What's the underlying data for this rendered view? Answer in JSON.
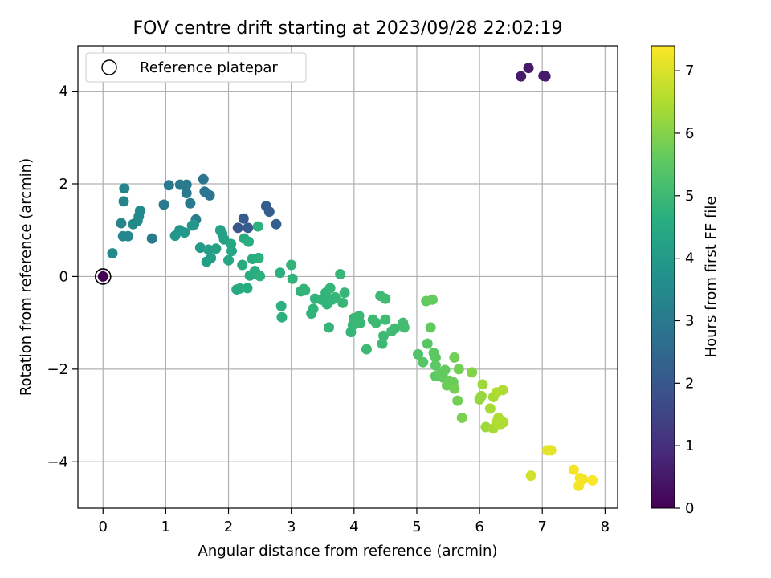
{
  "chart_data": {
    "type": "scatter",
    "title": "FOV centre drift starting at 2023/09/28 22:02:19",
    "xlabel": "Angular distance from reference (arcmin)",
    "ylabel": "Rotation from reference (arcmin)",
    "xlim": [
      -0.4,
      8.2
    ],
    "ylim": [
      -5.0,
      4.98
    ],
    "xticks": [
      0,
      1,
      2,
      3,
      4,
      5,
      6,
      7,
      8
    ],
    "yticks": [
      -4,
      -2,
      0,
      2,
      4
    ],
    "grid": true,
    "legend": {
      "position": "top-left",
      "entries": [
        "Reference platepar"
      ]
    },
    "reference_point": {
      "x": 0,
      "y": 0
    },
    "colorbar": {
      "label": "Hours from first FF file",
      "min": 0,
      "max": 7.4,
      "ticks": [
        0,
        1,
        2,
        3,
        4,
        5,
        6,
        7
      ],
      "colormap": "viridis"
    },
    "points": [
      {
        "x": 0.0,
        "y": 0.0,
        "c": 0.0
      },
      {
        "x": 6.66,
        "y": 4.32,
        "c": 0.5
      },
      {
        "x": 6.78,
        "y": 4.5,
        "c": 0.5
      },
      {
        "x": 7.02,
        "y": 4.33,
        "c": 0.55
      },
      {
        "x": 7.05,
        "y": 4.32,
        "c": 0.55
      },
      {
        "x": 2.15,
        "y": 1.05,
        "c": 2.0
      },
      {
        "x": 2.24,
        "y": 1.25,
        "c": 2.1
      },
      {
        "x": 2.31,
        "y": 1.05,
        "c": 2.1
      },
      {
        "x": 2.6,
        "y": 1.52,
        "c": 2.2
      },
      {
        "x": 2.65,
        "y": 1.4,
        "c": 2.2
      },
      {
        "x": 2.76,
        "y": 1.13,
        "c": 2.2
      },
      {
        "x": 0.97,
        "y": 1.55,
        "c": 3.0
      },
      {
        "x": 1.05,
        "y": 1.97,
        "c": 3.0
      },
      {
        "x": 1.23,
        "y": 1.98,
        "c": 3.0
      },
      {
        "x": 1.33,
        "y": 1.98,
        "c": 3.0
      },
      {
        "x": 1.33,
        "y": 1.8,
        "c": 3.0
      },
      {
        "x": 1.39,
        "y": 1.58,
        "c": 3.0
      },
      {
        "x": 1.48,
        "y": 1.23,
        "c": 3.05
      },
      {
        "x": 1.6,
        "y": 2.1,
        "c": 2.9
      },
      {
        "x": 1.62,
        "y": 1.83,
        "c": 2.9
      },
      {
        "x": 1.7,
        "y": 1.75,
        "c": 2.9
      },
      {
        "x": 0.78,
        "y": 0.82,
        "c": 3.1
      },
      {
        "x": 0.34,
        "y": 1.9,
        "c": 3.3
      },
      {
        "x": 0.33,
        "y": 1.62,
        "c": 3.3
      },
      {
        "x": 0.29,
        "y": 1.15,
        "c": 3.3
      },
      {
        "x": 0.32,
        "y": 0.87,
        "c": 3.4
      },
      {
        "x": 0.4,
        "y": 0.87,
        "c": 3.4
      },
      {
        "x": 0.15,
        "y": 0.5,
        "c": 3.5
      },
      {
        "x": 0.48,
        "y": 1.13,
        "c": 3.5
      },
      {
        "x": 0.55,
        "y": 1.2,
        "c": 3.5
      },
      {
        "x": 0.57,
        "y": 1.3,
        "c": 3.5
      },
      {
        "x": 0.59,
        "y": 1.42,
        "c": 3.5
      },
      {
        "x": 1.15,
        "y": 0.88,
        "c": 3.9
      },
      {
        "x": 1.22,
        "y": 1.0,
        "c": 3.9
      },
      {
        "x": 1.3,
        "y": 0.95,
        "c": 3.9
      },
      {
        "x": 1.42,
        "y": 1.1,
        "c": 3.9
      },
      {
        "x": 1.45,
        "y": 1.12,
        "c": 3.9
      },
      {
        "x": 1.55,
        "y": 0.62,
        "c": 4.0
      },
      {
        "x": 1.65,
        "y": 0.32,
        "c": 4.1
      },
      {
        "x": 1.68,
        "y": 0.58,
        "c": 4.1
      },
      {
        "x": 1.72,
        "y": 0.4,
        "c": 4.1
      },
      {
        "x": 1.8,
        "y": 0.6,
        "c": 4.2
      },
      {
        "x": 1.87,
        "y": 1.0,
        "c": 4.2
      },
      {
        "x": 1.9,
        "y": 0.92,
        "c": 4.2
      },
      {
        "x": 1.93,
        "y": 0.8,
        "c": 4.2
      },
      {
        "x": 2.0,
        "y": 0.35,
        "c": 4.4
      },
      {
        "x": 2.04,
        "y": 0.7,
        "c": 4.4
      },
      {
        "x": 2.05,
        "y": 0.55,
        "c": 4.4
      },
      {
        "x": 2.13,
        "y": -0.28,
        "c": 4.5
      },
      {
        "x": 2.18,
        "y": -0.26,
        "c": 4.5
      },
      {
        "x": 2.22,
        "y": 0.25,
        "c": 4.5
      },
      {
        "x": 2.25,
        "y": 0.82,
        "c": 4.5
      },
      {
        "x": 2.3,
        "y": -0.25,
        "c": 4.6
      },
      {
        "x": 2.32,
        "y": 0.75,
        "c": 4.6
      },
      {
        "x": 2.34,
        "y": 0.02,
        "c": 4.6
      },
      {
        "x": 2.38,
        "y": 0.38,
        "c": 4.6
      },
      {
        "x": 2.42,
        "y": 0.12,
        "c": 4.6
      },
      {
        "x": 2.45,
        "y": 0.05,
        "c": 4.6
      },
      {
        "x": 2.47,
        "y": 1.08,
        "c": 4.7
      },
      {
        "x": 2.48,
        "y": 0.4,
        "c": 4.7
      },
      {
        "x": 2.5,
        "y": 0.01,
        "c": 4.7
      },
      {
        "x": 2.82,
        "y": 0.08,
        "c": 4.7
      },
      {
        "x": 2.84,
        "y": -0.64,
        "c": 4.7
      },
      {
        "x": 2.85,
        "y": -0.88,
        "c": 4.7
      },
      {
        "x": 3.0,
        "y": 0.25,
        "c": 4.8
      },
      {
        "x": 3.02,
        "y": -0.05,
        "c": 4.8
      },
      {
        "x": 3.15,
        "y": -0.32,
        "c": 4.8
      },
      {
        "x": 3.2,
        "y": -0.27,
        "c": 4.8
      },
      {
        "x": 3.22,
        "y": -0.3,
        "c": 4.8
      },
      {
        "x": 3.32,
        "y": -0.8,
        "c": 4.8
      },
      {
        "x": 3.35,
        "y": -0.7,
        "c": 4.8
      },
      {
        "x": 3.38,
        "y": -0.48,
        "c": 4.8
      },
      {
        "x": 3.48,
        "y": -0.5,
        "c": 4.8
      },
      {
        "x": 3.52,
        "y": -0.48,
        "c": 4.8
      },
      {
        "x": 3.55,
        "y": -0.35,
        "c": 4.8
      },
      {
        "x": 3.57,
        "y": -0.6,
        "c": 4.8
      },
      {
        "x": 3.6,
        "y": -1.1,
        "c": 4.85
      },
      {
        "x": 3.62,
        "y": -0.25,
        "c": 4.85
      },
      {
        "x": 3.65,
        "y": -0.5,
        "c": 4.85
      },
      {
        "x": 3.7,
        "y": -0.45,
        "c": 4.85
      },
      {
        "x": 3.78,
        "y": 0.05,
        "c": 4.9
      },
      {
        "x": 3.82,
        "y": -0.57,
        "c": 4.9
      },
      {
        "x": 3.85,
        "y": -0.35,
        "c": 4.9
      },
      {
        "x": 3.95,
        "y": -1.2,
        "c": 4.9
      },
      {
        "x": 3.98,
        "y": -1.05,
        "c": 4.9
      },
      {
        "x": 4.0,
        "y": -0.9,
        "c": 4.9
      },
      {
        "x": 4.05,
        "y": -1.0,
        "c": 4.95
      },
      {
        "x": 4.08,
        "y": -0.85,
        "c": 4.95
      },
      {
        "x": 4.1,
        "y": -1.0,
        "c": 4.95
      },
      {
        "x": 4.2,
        "y": -1.57,
        "c": 5.0
      },
      {
        "x": 4.3,
        "y": -0.93,
        "c": 5.0
      },
      {
        "x": 4.35,
        "y": -1.0,
        "c": 5.0
      },
      {
        "x": 4.42,
        "y": -0.42,
        "c": 5.0
      },
      {
        "x": 4.45,
        "y": -1.45,
        "c": 5.0
      },
      {
        "x": 4.47,
        "y": -1.28,
        "c": 5.0
      },
      {
        "x": 4.5,
        "y": -0.93,
        "c": 5.05
      },
      {
        "x": 4.5,
        "y": -0.48,
        "c": 5.05
      },
      {
        "x": 4.6,
        "y": -1.18,
        "c": 5.05
      },
      {
        "x": 4.65,
        "y": -1.12,
        "c": 5.05
      },
      {
        "x": 4.78,
        "y": -1.0,
        "c": 5.1
      },
      {
        "x": 4.8,
        "y": -1.1,
        "c": 5.1
      },
      {
        "x": 5.02,
        "y": -1.68,
        "c": 5.3
      },
      {
        "x": 5.1,
        "y": -1.85,
        "c": 5.4
      },
      {
        "x": 5.15,
        "y": -0.53,
        "c": 5.6
      },
      {
        "x": 5.17,
        "y": -1.45,
        "c": 5.45
      },
      {
        "x": 5.22,
        "y": -1.1,
        "c": 5.6
      },
      {
        "x": 5.25,
        "y": -0.5,
        "c": 5.6
      },
      {
        "x": 5.27,
        "y": -1.65,
        "c": 5.5
      },
      {
        "x": 5.3,
        "y": -1.75,
        "c": 5.5
      },
      {
        "x": 5.3,
        "y": -1.92,
        "c": 5.5
      },
      {
        "x": 5.3,
        "y": -2.15,
        "c": 5.5
      },
      {
        "x": 5.38,
        "y": -2.1,
        "c": 5.6
      },
      {
        "x": 5.42,
        "y": -2.18,
        "c": 5.6
      },
      {
        "x": 5.45,
        "y": -2.02,
        "c": 5.6
      },
      {
        "x": 5.48,
        "y": -2.35,
        "c": 5.7
      },
      {
        "x": 5.52,
        "y": -2.25,
        "c": 5.7
      },
      {
        "x": 5.58,
        "y": -2.28,
        "c": 5.7
      },
      {
        "x": 5.6,
        "y": -1.75,
        "c": 5.8
      },
      {
        "x": 5.6,
        "y": -2.42,
        "c": 5.8
      },
      {
        "x": 5.65,
        "y": -2.68,
        "c": 5.8
      },
      {
        "x": 5.67,
        "y": -2.0,
        "c": 5.8
      },
      {
        "x": 5.72,
        "y": -3.05,
        "c": 5.9
      },
      {
        "x": 5.88,
        "y": -2.07,
        "c": 6.0
      },
      {
        "x": 6.0,
        "y": -2.65,
        "c": 6.2
      },
      {
        "x": 6.03,
        "y": -2.58,
        "c": 6.2
      },
      {
        "x": 6.05,
        "y": -2.33,
        "c": 6.3
      },
      {
        "x": 6.1,
        "y": -3.25,
        "c": 6.3
      },
      {
        "x": 6.17,
        "y": -2.85,
        "c": 6.4
      },
      {
        "x": 6.22,
        "y": -3.28,
        "c": 6.4
      },
      {
        "x": 6.22,
        "y": -2.6,
        "c": 6.4
      },
      {
        "x": 6.27,
        "y": -2.5,
        "c": 6.5
      },
      {
        "x": 6.27,
        "y": -3.15,
        "c": 6.5
      },
      {
        "x": 6.3,
        "y": -3.05,
        "c": 6.5
      },
      {
        "x": 6.33,
        "y": -3.2,
        "c": 6.5
      },
      {
        "x": 6.37,
        "y": -2.45,
        "c": 6.5
      },
      {
        "x": 6.38,
        "y": -3.15,
        "c": 6.5
      },
      {
        "x": 6.82,
        "y": -4.3,
        "c": 6.9
      },
      {
        "x": 7.08,
        "y": -3.75,
        "c": 7.1
      },
      {
        "x": 7.14,
        "y": -3.75,
        "c": 7.1
      },
      {
        "x": 7.5,
        "y": -4.17,
        "c": 7.3
      },
      {
        "x": 7.58,
        "y": -4.52,
        "c": 7.3
      },
      {
        "x": 7.6,
        "y": -4.35,
        "c": 7.3
      },
      {
        "x": 7.65,
        "y": -4.38,
        "c": 7.3
      },
      {
        "x": 7.8,
        "y": -4.4,
        "c": 7.35
      }
    ]
  }
}
